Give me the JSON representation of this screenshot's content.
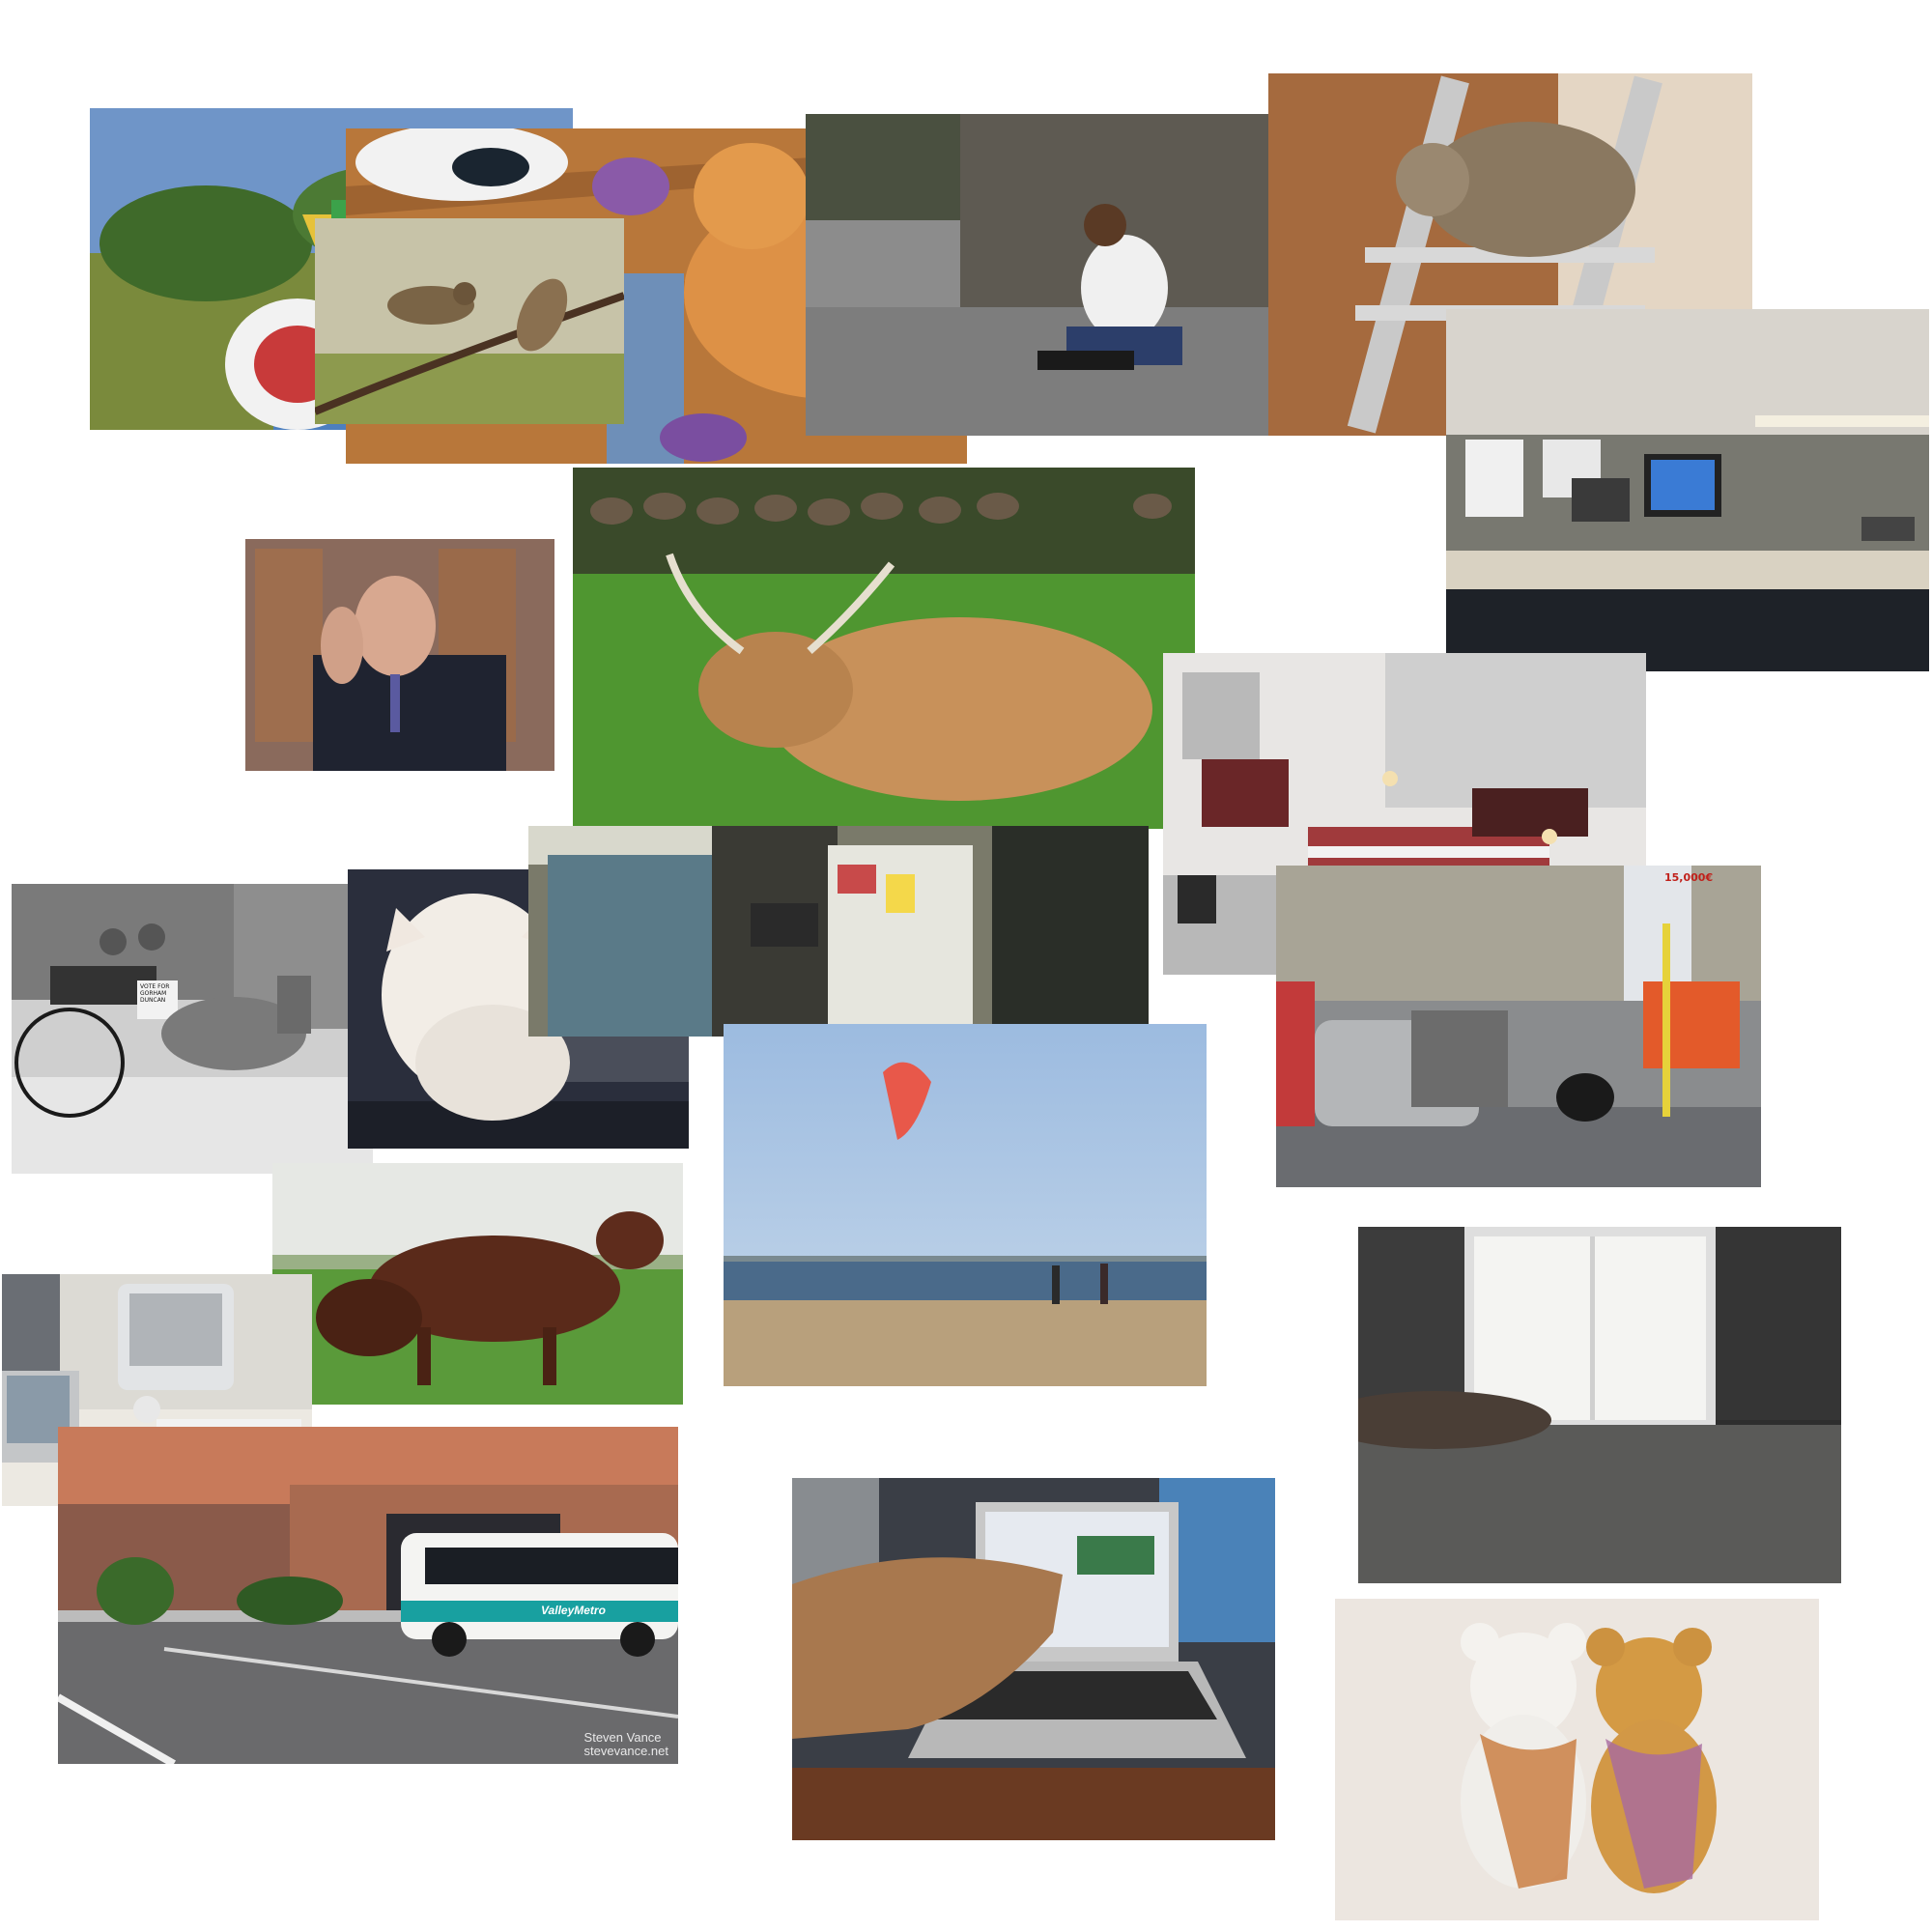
{
  "collage": {
    "tiles": [
      "frisbee-park",
      "sneakers-and-cat",
      "birds-on-branch",
      "skateboarder",
      "cat-on-ladder",
      "office-cubicle",
      "man-webcam",
      "highland-cattle",
      "bedroom-modern",
      "horse-cart",
      "white-kitten",
      "kitchen-fridge",
      "street-traffic",
      "cows-field",
      "kite-beach",
      "imac-desk",
      "bedroom-window",
      "city-bus",
      "laptop-typing",
      "teddy-bears"
    ]
  },
  "texts": {
    "bus_watermark_line1": "Steven Vance",
    "bus_watermark_line2": "stevevance.net",
    "bus_brand": "ValleyMetro",
    "cart_sign": "VOTE FOR GORHAM DUNCAN",
    "traffic_billboard": "15,000€"
  }
}
